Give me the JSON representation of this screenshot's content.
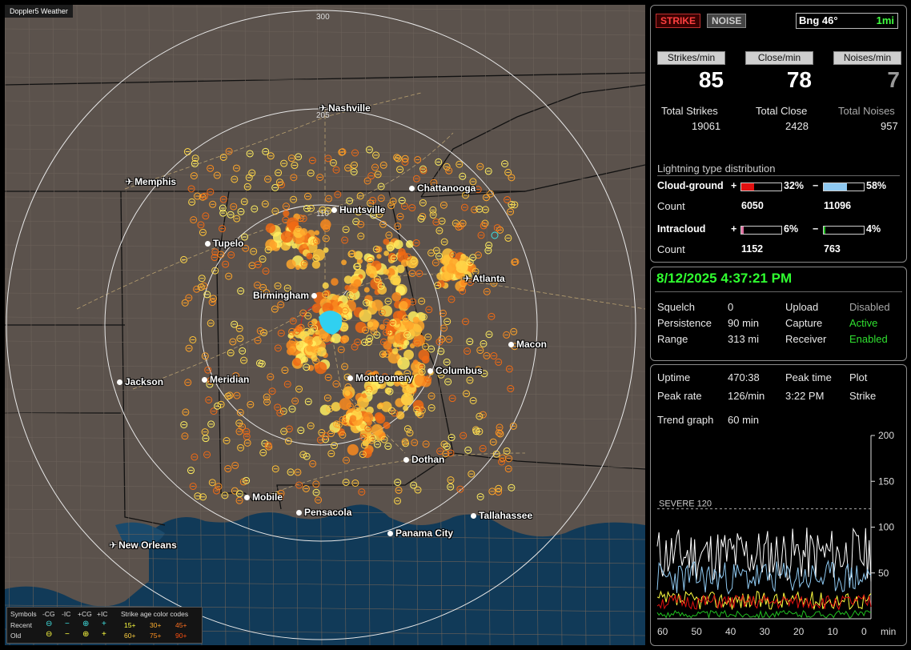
{
  "app": {
    "title": "Doppler5 Weather"
  },
  "map": {
    "cities": [
      {
        "name": "Nashville",
        "type": "airport"
      },
      {
        "name": "Memphis",
        "type": "airport"
      },
      {
        "name": "Chattanooga",
        "type": "city"
      },
      {
        "name": "Huntsville",
        "type": "city"
      },
      {
        "name": "Tupelo",
        "type": "city"
      },
      {
        "name": "Atlanta",
        "type": "airport"
      },
      {
        "name": "Birmingham",
        "type": "city"
      },
      {
        "name": "Macon",
        "type": "city"
      },
      {
        "name": "Jackson",
        "type": "city"
      },
      {
        "name": "Meridian",
        "type": "city"
      },
      {
        "name": "Montgomery",
        "type": "city"
      },
      {
        "name": "Columbus",
        "type": "city"
      },
      {
        "name": "Dothan",
        "type": "city"
      },
      {
        "name": "Mobile",
        "type": "city"
      },
      {
        "name": "Pensacola",
        "type": "city"
      },
      {
        "name": "Tallahassee",
        "type": "city"
      },
      {
        "name": "Panama City",
        "type": "city"
      },
      {
        "name": "New Orleans",
        "type": "airport"
      }
    ],
    "ring_labels": [
      "300",
      "205",
      "110"
    ],
    "legend": {
      "symbols_label": "Symbols",
      "col_headers": [
        "-CG",
        "-IC",
        "+CG",
        "+IC"
      ],
      "rows": [
        "Recent",
        "Old"
      ],
      "age_title": "Strike age color codes",
      "ages_recent": [
        "15+",
        "30+",
        "45+"
      ],
      "ages_old": [
        "60+",
        "75+",
        "90+"
      ],
      "age_colors": [
        "#ffff40",
        "#ffb030",
        "#ff7020",
        "#ffd040",
        "#ff9020",
        "#ff5010"
      ]
    }
  },
  "controls": {
    "strike_button": "STRIKE",
    "noise_button": "NOISE",
    "bearing": "Bng 46°",
    "range_unit": "1mi"
  },
  "rates": {
    "strikes_header": "Strikes/min",
    "strikes_value": "85",
    "close_header": "Close/min",
    "close_value": "78",
    "noises_header": "Noises/min",
    "noises_value": "7"
  },
  "totals": {
    "strikes_label": "Total Strikes",
    "strikes_value": "19061",
    "close_label": "Total Close",
    "close_value": "2428",
    "noises_label": "Total Noises",
    "noises_value": "957"
  },
  "distribution": {
    "title": "Lightning type distribution",
    "cg_label": "Cloud-ground",
    "ic_label": "Intracloud",
    "count_label": "Count",
    "plus": "+",
    "minus": "−",
    "cg_pos_pct": "32%",
    "cg_pos_frac": 0.32,
    "cg_pos_color": "#e01010",
    "cg_neg_pct": "58%",
    "cg_neg_frac": 0.58,
    "cg_neg_color": "#8ec8f0",
    "cg_pos_count": "6050",
    "cg_neg_count": "11096",
    "ic_pos_pct": "6%",
    "ic_pos_frac": 0.06,
    "ic_pos_color": "#e070a0",
    "ic_neg_pct": "4%",
    "ic_neg_frac": 0.04,
    "ic_neg_color": "#20c020",
    "ic_pos_count": "1152",
    "ic_neg_count": "763"
  },
  "status": {
    "datetime": "8/12/2025 4:37:21 PM",
    "squelch_label": "Squelch",
    "squelch_value": "0",
    "persistence_label": "Persistence",
    "persistence_value": "90 min",
    "range_label": "Range",
    "range_value": "313 mi",
    "upload_label": "Upload",
    "upload_value": "Disabled",
    "capture_label": "Capture",
    "capture_value": "Active",
    "receiver_label": "Receiver",
    "receiver_value": "Enabled"
  },
  "trend": {
    "uptime_label": "Uptime",
    "uptime_value": "470:38",
    "peak_time_label": "Peak time",
    "peak_time_value": "3:22 PM",
    "plot_label": "Plot",
    "plot_value": "Strike",
    "peak_rate_label": "Peak rate",
    "peak_rate_value": "126/min",
    "trend_graph_label": "Trend graph",
    "trend_graph_value": "60 min",
    "severe_label": "SEVERE 120",
    "y_ticks": [
      "200",
      "150",
      "100",
      "50"
    ],
    "x_ticks": [
      "60",
      "50",
      "40",
      "30",
      "20",
      "10",
      "0"
    ],
    "x_unit": "min"
  }
}
